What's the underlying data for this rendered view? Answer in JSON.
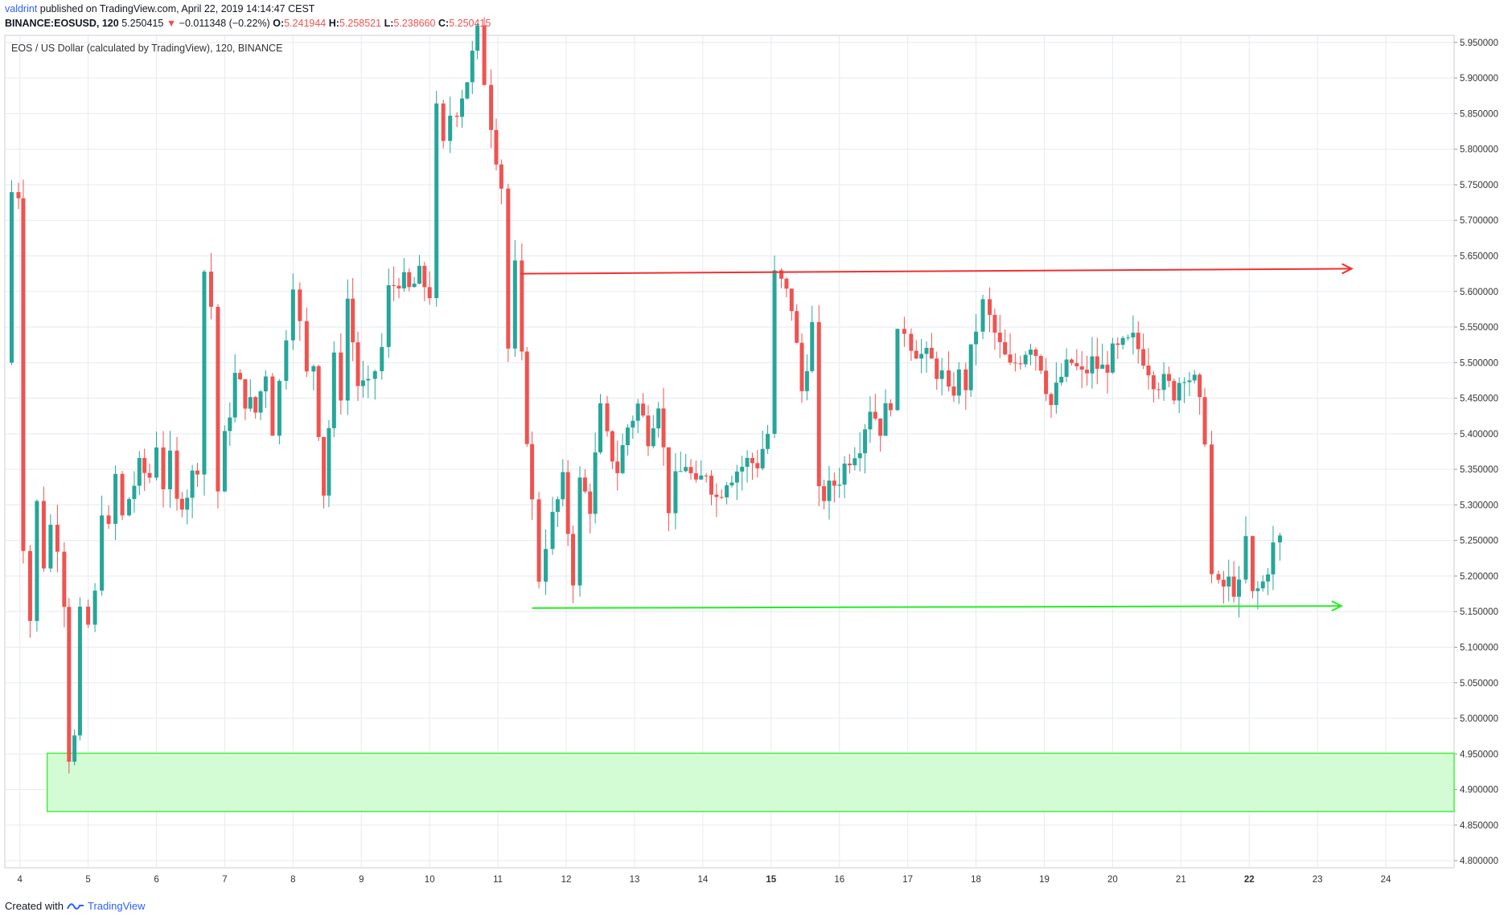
{
  "header": {
    "username": "valdrint",
    "published_text": "published on TradingView.com, April 22, 2019 14:14:47 CEST",
    "symbol_prefix": "BINANCE:EOSUSD, 120",
    "last": "5.250415",
    "change": "−0.011348 (−0.22%)",
    "change_direction_icon": "triangle-down-icon",
    "o_label": "O:",
    "o_value": "5.241944",
    "h_label": "H:",
    "h_value": "5.258521",
    "l_label": "L:",
    "l_value": "5.238660",
    "c_label": "C:",
    "c_value": "5.250415"
  },
  "footer": {
    "created_with": "Created with",
    "brand": "TradingView",
    "logo_icon": "tradingview-logo-icon"
  },
  "colors": {
    "up": "#26a69a",
    "down": "#ef5350",
    "grid": "#e6eaf0",
    "resistance": "#f23030",
    "support": "#22ee22",
    "zone_fill": "#d4fcd4",
    "zone_border": "#44ee44"
  },
  "chart_data": {
    "type": "candlestick",
    "title": "EOS / US Dollar (calculated by TradingView), 120, BINANCE",
    "ylim": [
      4.79,
      5.96
    ],
    "y_ticks": [
      "5.950000",
      "5.900000",
      "5.850000",
      "5.800000",
      "5.750000",
      "5.700000",
      "5.650000",
      "5.600000",
      "5.550000",
      "5.500000",
      "5.450000",
      "5.400000",
      "5.350000",
      "5.300000",
      "5.250000",
      "5.200000",
      "5.150000",
      "5.100000",
      "5.050000",
      "5.000000",
      "4.950000",
      "4.900000",
      "4.850000",
      "4.800000"
    ],
    "x_ticks": [
      {
        "day": 4,
        "label": "4"
      },
      {
        "day": 5,
        "label": "5"
      },
      {
        "day": 6,
        "label": "6"
      },
      {
        "day": 7,
        "label": "7"
      },
      {
        "day": 8,
        "label": "8"
      },
      {
        "day": 9,
        "label": "9"
      },
      {
        "day": 10,
        "label": "10"
      },
      {
        "day": 11,
        "label": "11"
      },
      {
        "day": 12,
        "label": "12"
      },
      {
        "day": 13,
        "label": "13"
      },
      {
        "day": 14,
        "label": "14"
      },
      {
        "day": 15,
        "label": "15"
      },
      {
        "day": 16,
        "label": "16"
      },
      {
        "day": 17,
        "label": "17"
      },
      {
        "day": 18,
        "label": "18"
      },
      {
        "day": 19,
        "label": "19"
      },
      {
        "day": 20,
        "label": "20"
      },
      {
        "day": 21,
        "label": "21"
      },
      {
        "day": 22,
        "label": "22"
      },
      {
        "day": 23,
        "label": "23"
      },
      {
        "day": 24,
        "label": "24"
      }
    ],
    "xlim": [
      3.78,
      25.0
    ],
    "close_path": [
      [
        3.8,
        5.5
      ],
      [
        3.88,
        5.74
      ],
      [
        3.98,
        5.74
      ],
      [
        4.05,
        5.25
      ],
      [
        4.15,
        5.14
      ],
      [
        4.25,
        5.3
      ],
      [
        4.35,
        5.22
      ],
      [
        4.45,
        5.27
      ],
      [
        4.55,
        5.25
      ],
      [
        4.65,
        5.17
      ],
      [
        4.72,
        4.95
      ],
      [
        4.8,
        4.97
      ],
      [
        4.88,
        5.14
      ],
      [
        5.0,
        5.13
      ],
      [
        5.1,
        5.17
      ],
      [
        5.2,
        5.3
      ],
      [
        5.3,
        5.26
      ],
      [
        5.4,
        5.34
      ],
      [
        5.5,
        5.28
      ],
      [
        5.6,
        5.31
      ],
      [
        5.75,
        5.35
      ],
      [
        5.9,
        5.34
      ],
      [
        6.0,
        5.39
      ],
      [
        6.1,
        5.33
      ],
      [
        6.2,
        5.36
      ],
      [
        6.3,
        5.3
      ],
      [
        6.45,
        5.32
      ],
      [
        6.6,
        5.36
      ],
      [
        6.7,
        5.63
      ],
      [
        6.8,
        5.58
      ],
      [
        6.9,
        5.32
      ],
      [
        7.0,
        5.39
      ],
      [
        7.15,
        5.48
      ],
      [
        7.3,
        5.45
      ],
      [
        7.45,
        5.43
      ],
      [
        7.6,
        5.49
      ],
      [
        7.7,
        5.41
      ],
      [
        7.8,
        5.47
      ],
      [
        8.0,
        5.62
      ],
      [
        8.1,
        5.55
      ],
      [
        8.2,
        5.48
      ],
      [
        8.3,
        5.5
      ],
      [
        8.45,
        5.32
      ],
      [
        8.6,
        5.5
      ],
      [
        8.7,
        5.46
      ],
      [
        8.8,
        5.59
      ],
      [
        8.95,
        5.47
      ],
      [
        9.1,
        5.46
      ],
      [
        9.2,
        5.49
      ],
      [
        9.3,
        5.52
      ],
      [
        9.4,
        5.6
      ],
      [
        9.55,
        5.62
      ],
      [
        9.7,
        5.6
      ],
      [
        9.85,
        5.62
      ],
      [
        10.0,
        5.6
      ],
      [
        10.1,
        5.85
      ],
      [
        10.2,
        5.8
      ],
      [
        10.3,
        5.85
      ],
      [
        10.4,
        5.86
      ],
      [
        10.55,
        5.9
      ],
      [
        10.7,
        5.96
      ],
      [
        10.8,
        5.9
      ],
      [
        10.9,
        5.84
      ],
      [
        11.05,
        5.75
      ],
      [
        11.15,
        5.52
      ],
      [
        11.25,
        5.63
      ],
      [
        11.35,
        5.5
      ],
      [
        11.5,
        5.3
      ],
      [
        11.6,
        5.2
      ],
      [
        11.7,
        5.25
      ],
      [
        11.8,
        5.28
      ],
      [
        11.95,
        5.33
      ],
      [
        12.1,
        5.2
      ],
      [
        12.2,
        5.33
      ],
      [
        12.35,
        5.3
      ],
      [
        12.5,
        5.43
      ],
      [
        12.6,
        5.39
      ],
      [
        12.75,
        5.35
      ],
      [
        12.9,
        5.41
      ],
      [
        13.05,
        5.44
      ],
      [
        13.2,
        5.4
      ],
      [
        13.35,
        5.45
      ],
      [
        13.5,
        5.3
      ],
      [
        13.6,
        5.33
      ],
      [
        13.75,
        5.36
      ],
      [
        13.9,
        5.32
      ],
      [
        14.05,
        5.35
      ],
      [
        14.2,
        5.31
      ],
      [
        14.35,
        5.34
      ],
      [
        14.5,
        5.35
      ],
      [
        14.65,
        5.36
      ],
      [
        14.8,
        5.36
      ],
      [
        14.95,
        5.4
      ],
      [
        15.05,
        5.62
      ],
      [
        15.15,
        5.61
      ],
      [
        15.3,
        5.58
      ],
      [
        15.45,
        5.46
      ],
      [
        15.6,
        5.55
      ],
      [
        15.7,
        5.31
      ],
      [
        15.85,
        5.32
      ],
      [
        16.0,
        5.34
      ],
      [
        16.15,
        5.37
      ],
      [
        16.3,
        5.39
      ],
      [
        16.45,
        5.44
      ],
      [
        16.6,
        5.41
      ],
      [
        16.75,
        5.45
      ],
      [
        16.85,
        5.53
      ],
      [
        16.95,
        5.55
      ],
      [
        17.05,
        5.53
      ],
      [
        17.2,
        5.51
      ],
      [
        17.35,
        5.5
      ],
      [
        17.5,
        5.48
      ],
      [
        17.6,
        5.45
      ],
      [
        17.75,
        5.48
      ],
      [
        17.85,
        5.47
      ],
      [
        18.0,
        5.55
      ],
      [
        18.1,
        5.58
      ],
      [
        18.2,
        5.56
      ],
      [
        18.35,
        5.52
      ],
      [
        18.5,
        5.49
      ],
      [
        18.65,
        5.51
      ],
      [
        18.8,
        5.53
      ],
      [
        18.95,
        5.5
      ],
      [
        19.1,
        5.44
      ],
      [
        19.25,
        5.48
      ],
      [
        19.4,
        5.5
      ],
      [
        19.55,
        5.48
      ],
      [
        19.7,
        5.5
      ],
      [
        19.85,
        5.49
      ],
      [
        20.0,
        5.51
      ],
      [
        20.15,
        5.52
      ],
      [
        20.3,
        5.53
      ],
      [
        20.45,
        5.51
      ],
      [
        20.6,
        5.48
      ],
      [
        20.75,
        5.47
      ],
      [
        20.9,
        5.46
      ],
      [
        21.05,
        5.49
      ],
      [
        21.2,
        5.47
      ],
      [
        21.35,
        5.4
      ],
      [
        21.45,
        5.2
      ],
      [
        21.55,
        5.18
      ],
      [
        21.7,
        5.19
      ],
      [
        21.85,
        5.18
      ],
      [
        21.95,
        5.25
      ],
      [
        22.05,
        5.17
      ],
      [
        22.2,
        5.19
      ],
      [
        22.35,
        5.24
      ],
      [
        22.45,
        5.250415
      ]
    ],
    "resistance_line": {
      "x1": 11.33,
      "y1": 5.625,
      "x2": 23.5,
      "y2": 5.632
    },
    "support_line": {
      "x1": 11.5,
      "y1": 5.155,
      "x2": 23.35,
      "y2": 5.158
    },
    "demand_zone": {
      "x1": 4.4,
      "x2": 25.0,
      "y_low": 4.869,
      "y_high": 4.951
    }
  }
}
